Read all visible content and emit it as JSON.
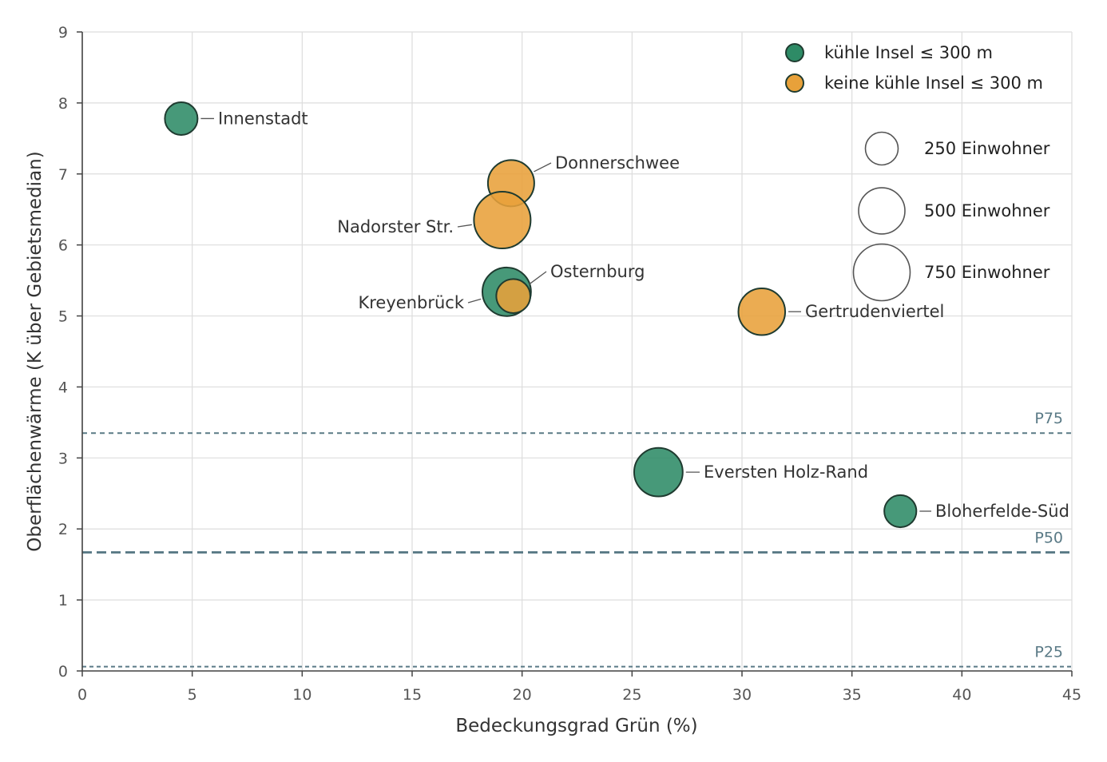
{
  "chart_data": {
    "type": "scatter",
    "title": "",
    "xlabel": "Bedeckungsgrad Grün (%)",
    "ylabel": "Oberflächenwärme (K über Gebietsmedian)",
    "xlim": [
      0,
      45
    ],
    "ylim": [
      0,
      9
    ],
    "xticks": [
      "0",
      "5",
      "10",
      "15",
      "20",
      "25",
      "30",
      "35",
      "40",
      "45"
    ],
    "yticks": [
      "0",
      "1",
      "2",
      "3",
      "4",
      "5",
      "6",
      "7",
      "8",
      "9"
    ],
    "grid": true,
    "colors": {
      "cool": "#2e8b66",
      "warm": "#e8a13a",
      "edge": "#1f3b30",
      "reference": "#5a7a86"
    },
    "series": [
      {
        "name": "kühle Insel ≤ 300 m",
        "key": "cool"
      },
      {
        "name": "keine kühle Insel ≤ 300 m",
        "key": "warm"
      }
    ],
    "points": [
      {
        "label": "Innenstadt",
        "x": 4.5,
        "y": 7.78,
        "residents": 250,
        "series": "cool"
      },
      {
        "label": "Donnerschwee",
        "x": 19.5,
        "y": 6.87,
        "residents": 500,
        "series": "warm"
      },
      {
        "label": "Nadorster Str.",
        "x": 19.1,
        "y": 6.35,
        "residents": 750,
        "series": "warm"
      },
      {
        "label": "Kreyenbrück",
        "x": 19.3,
        "y": 5.34,
        "residents": 550,
        "series": "cool"
      },
      {
        "label": "Osternburg",
        "x": 19.6,
        "y": 5.28,
        "residents": 270,
        "series": "warm"
      },
      {
        "label": "Gertrudenviertel",
        "x": 30.9,
        "y": 5.06,
        "residents": 510,
        "series": "warm"
      },
      {
        "label": "Eversten Holz-Rand",
        "x": 26.2,
        "y": 2.8,
        "residents": 550,
        "series": "cool"
      },
      {
        "label": "Bloherfelde-Süd",
        "x": 37.2,
        "y": 2.25,
        "residents": 240,
        "series": "cool"
      }
    ],
    "reference_lines": [
      {
        "label": "P75",
        "y": 3.35
      },
      {
        "label": "P50",
        "y": 1.67
      },
      {
        "label": "P25",
        "y": 0.06
      }
    ],
    "size_legend": [
      {
        "residents": 250,
        "label": "250 Einwohner"
      },
      {
        "residents": 500,
        "label": "500 Einwohner"
      },
      {
        "residents": 750,
        "label": "750 Einwohner"
      }
    ],
    "legend_position": "top-right"
  }
}
